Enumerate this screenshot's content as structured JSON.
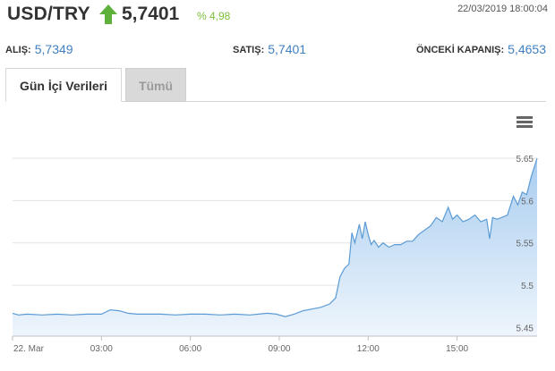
{
  "header": {
    "pair": "USD/TRY",
    "price": "5,7401",
    "change": "% 4,98",
    "datetime": "22/03/2019 18:00:04",
    "trend_icon": "up-arrow-icon",
    "trend_color": "#5db03a"
  },
  "stats": {
    "bid_label": "ALIŞ:",
    "bid_value": "5,7349",
    "ask_label": "SATIŞ:",
    "ask_value": "5,7401",
    "prev_close_label": "ÖNCEKİ KAPANIŞ:",
    "prev_close_value": "5,4653",
    "value_color": "#3f7fc0"
  },
  "tabs": [
    {
      "label": "Gün İçi Verileri",
      "active": true
    },
    {
      "label": "Tümü",
      "active": false
    }
  ],
  "chart_menu_icon": "hamburger-menu-icon",
  "chart_data": {
    "type": "area",
    "x_ticks": [
      "22. Mar",
      "03:00",
      "06:00",
      "09:00",
      "12:00",
      "15:00"
    ],
    "x_tick_hours": [
      0,
      3,
      6,
      9,
      12,
      15
    ],
    "y_ticks": [
      "5.45",
      "5.5",
      "5.55",
      "5.6",
      "5.65"
    ],
    "y_tick_values": [
      5.45,
      5.5,
      5.55,
      5.6,
      5.65
    ],
    "ylim": [
      5.44,
      5.67
    ],
    "xlim_hours": [
      0,
      17.7
    ],
    "grid": true,
    "line_color": "#5b9bd5",
    "fill_top": "#a9cdf0",
    "fill_bottom": "#eef5fc",
    "series": [
      {
        "x": [
          0,
          0.2,
          0.5,
          1,
          1.5,
          2,
          2.5,
          3,
          3.3,
          3.6,
          3.9,
          4.2,
          4.5,
          5,
          5.5,
          6,
          6.5,
          7,
          7.5,
          8,
          8.3,
          8.6,
          8.9,
          9.2,
          9.5,
          9.8,
          10.1,
          10.4,
          10.7,
          10.9,
          11.05,
          11.2,
          11.35,
          11.45,
          11.55,
          11.7,
          11.8,
          11.9,
          12.0,
          12.1,
          12.2,
          12.35,
          12.5,
          12.7,
          12.9,
          13.1,
          13.3,
          13.5,
          13.7,
          13.9,
          14.1,
          14.3,
          14.5,
          14.7,
          14.85,
          15.0,
          15.2,
          15.4,
          15.6,
          15.8,
          16.0,
          16.1,
          16.2,
          16.35,
          16.5,
          16.7,
          16.9,
          17.05,
          17.2,
          17.35,
          17.5,
          17.7
        ],
        "y": [
          5.467,
          5.465,
          5.466,
          5.465,
          5.466,
          5.465,
          5.466,
          5.466,
          5.471,
          5.47,
          5.467,
          5.466,
          5.466,
          5.466,
          5.465,
          5.466,
          5.466,
          5.465,
          5.466,
          5.465,
          5.466,
          5.467,
          5.466,
          5.463,
          5.466,
          5.47,
          5.472,
          5.474,
          5.478,
          5.485,
          5.51,
          5.52,
          5.525,
          5.562,
          5.55,
          5.572,
          5.555,
          5.575,
          5.56,
          5.548,
          5.553,
          5.545,
          5.55,
          5.545,
          5.548,
          5.548,
          5.552,
          5.552,
          5.56,
          5.565,
          5.57,
          5.58,
          5.575,
          5.592,
          5.578,
          5.583,
          5.575,
          5.578,
          5.583,
          5.575,
          5.578,
          5.555,
          5.58,
          5.578,
          5.58,
          5.583,
          5.605,
          5.595,
          5.61,
          5.607,
          5.628,
          5.65
        ]
      }
    ]
  }
}
